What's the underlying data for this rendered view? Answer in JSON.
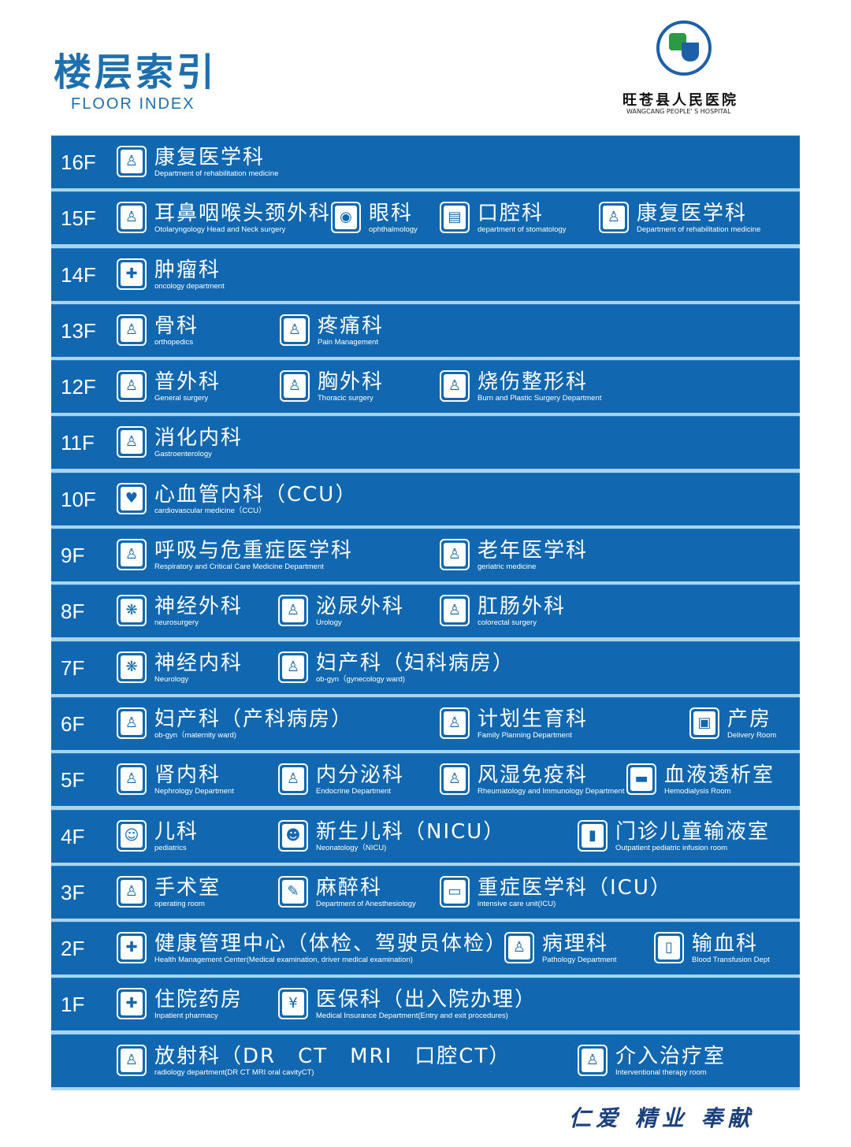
{
  "header": {
    "title_cn": "楼层索引",
    "title_en": "FLOOR  INDEX",
    "hospital_cn": "旺苍县人民医院",
    "hospital_en": "WANGCANG PEOPLE' S HOSPITAL",
    "logo_text": "WANGCANG PEOPLE'S HOSPITAL"
  },
  "colors": {
    "row_bg": "#1168b0",
    "divider": "#a9d4ee",
    "title": "#1d6fae"
  },
  "floors": [
    {
      "floor": "16F",
      "items": [
        {
          "cn": "康复医学科",
          "en": "Department of rehabilitation medicine",
          "icon": "rehabilitation-icon"
        }
      ]
    },
    {
      "floor": "15F",
      "items": [
        {
          "cn": "耳鼻咽喉头颈外科",
          "en": "Otolaryngology Head and Neck surgery",
          "icon": "ear-icon"
        },
        {
          "cn": "眼科",
          "en": "ophthalmology",
          "icon": "eye-icon"
        },
        {
          "cn": "口腔科",
          "en": "department of stomatology",
          "icon": "teeth-icon"
        },
        {
          "cn": "康复医学科",
          "en": "Department of rehabilitation medicine",
          "icon": "rehabilitation-icon"
        }
      ]
    },
    {
      "floor": "14F",
      "items": [
        {
          "cn": "肿瘤科",
          "en": "oncology department",
          "icon": "oncology-icon"
        }
      ]
    },
    {
      "floor": "13F",
      "items": [
        {
          "cn": "骨科",
          "en": "orthopedics",
          "icon": "bone-icon"
        },
        {
          "cn": "疼痛科",
          "en": "Pain Management",
          "icon": "pain-icon"
        }
      ]
    },
    {
      "floor": "12F",
      "items": [
        {
          "cn": "普外科",
          "en": "General surgery",
          "icon": "surgery-icon"
        },
        {
          "cn": "胸外科",
          "en": "Thoracic surgery",
          "icon": "chest-icon"
        },
        {
          "cn": "烧伤整形科",
          "en": "Burn and Plastic Surgery Department",
          "icon": "burn-icon"
        }
      ]
    },
    {
      "floor": "11F",
      "items": [
        {
          "cn": "消化内科",
          "en": "Gastroenterology",
          "icon": "stomach-icon"
        }
      ]
    },
    {
      "floor": "10F",
      "items": [
        {
          "cn": "心血管内科（CCU）",
          "en": "cardiovascular medicine（CCU）",
          "icon": "heart-icon"
        }
      ]
    },
    {
      "floor": "9F",
      "items": [
        {
          "cn": "呼吸与危重症医学科",
          "en": "Respiratory and Critical Care Medicine Department",
          "icon": "lungs-icon"
        },
        {
          "cn": "老年医学科",
          "en": "geriatric medicine",
          "icon": "elderly-icon"
        }
      ]
    },
    {
      "floor": "8F",
      "items": [
        {
          "cn": "神经外科",
          "en": "neurosurgery",
          "icon": "brain-icon"
        },
        {
          "cn": "泌尿外科",
          "en": "Urology",
          "icon": "urology-icon"
        },
        {
          "cn": "肛肠外科",
          "en": "colorectal surgery",
          "icon": "colorectal-icon"
        }
      ]
    },
    {
      "floor": "7F",
      "items": [
        {
          "cn": "神经内科",
          "en": "Neurology",
          "icon": "brain-icon"
        },
        {
          "cn": "妇产科（妇科病房）",
          "en": "ob-gyn（gynecology ward)",
          "icon": "pregnant-icon"
        }
      ]
    },
    {
      "floor": "6F",
      "items": [
        {
          "cn": "妇产科（产科病房）",
          "en": "ob-gyn（maternity ward)",
          "icon": "pregnant-icon"
        },
        {
          "cn": "计划生育科",
          "en": "Family Planning Department",
          "icon": "family-icon"
        },
        {
          "cn": "产房",
          "en": "Delivery Room",
          "icon": "bed-icon"
        }
      ]
    },
    {
      "floor": "5F",
      "items": [
        {
          "cn": "肾内科",
          "en": "Nephrology Department",
          "icon": "kidney-icon"
        },
        {
          "cn": "内分泌科",
          "en": "Endocrine Department",
          "icon": "endocrine-icon"
        },
        {
          "cn": "风湿免疫科",
          "en": "Rheumatology and Immunology Department",
          "icon": "immunology-icon"
        },
        {
          "cn": "血液透析室",
          "en": "Hemodialysis Room",
          "icon": "dialysis-icon"
        }
      ]
    },
    {
      "floor": "4F",
      "items": [
        {
          "cn": "儿科",
          "en": "pediatrics",
          "icon": "child-icon"
        },
        {
          "cn": "新生儿科（NICU）",
          "en": "Neonatology（NICU)",
          "icon": "baby-icon"
        },
        {
          "cn": "门诊儿童输液室",
          "en": "Outpatient pediatric infusion room",
          "icon": "infusion-icon"
        }
      ]
    },
    {
      "floor": "3F",
      "items": [
        {
          "cn": "手术室",
          "en": "operating room",
          "icon": "operating-icon"
        },
        {
          "cn": "麻醉科",
          "en": "Department of Anesthesiology",
          "icon": "syringe-icon"
        },
        {
          "cn": "重症医学科（ICU）",
          "en": "intensive care unit(ICU)",
          "icon": "monitor-icon"
        }
      ]
    },
    {
      "floor": "2F",
      "items": [
        {
          "cn": "健康管理中心（体检、驾驶员体检）",
          "en": "Health Management Center(Medical examination, driver medical examination)",
          "icon": "cross-icon"
        },
        {
          "cn": "病理科",
          "en": "Pathology Department",
          "icon": "pathology-icon"
        },
        {
          "cn": "输血科",
          "en": "Blood Transfusion Dept",
          "icon": "blood-bag-icon"
        }
      ]
    },
    {
      "floor": "1F",
      "items": [
        {
          "cn": "住院药房",
          "en": "Inpatient pharmacy",
          "icon": "pharmacy-icon"
        },
        {
          "cn": "医保科（出入院办理）",
          "en": "Medical Insurance Department(Entry and exit procedures)",
          "icon": "insurance-icon"
        }
      ]
    },
    {
      "floor": "",
      "items": [
        {
          "cn": "放射科（DR　CT　MRI　口腔CT）",
          "en": "radiology department(DR  CT  MRI  oral cavityCT)",
          "icon": "xray-icon"
        },
        {
          "cn": "介入治疗室",
          "en": "Interventional therapy room",
          "icon": "intervention-icon"
        }
      ]
    }
  ],
  "footer": {
    "slogan": "仁爱 精业 奉献"
  }
}
